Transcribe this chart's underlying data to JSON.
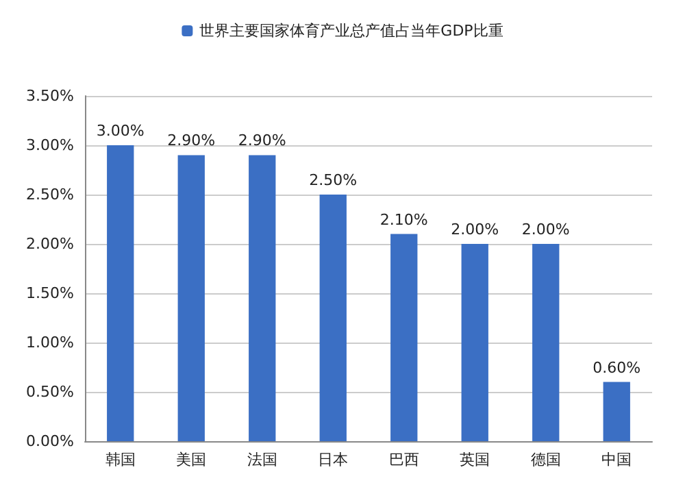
{
  "chart_data": {
    "type": "bar",
    "categories": [
      "韩国",
      "美国",
      "法国",
      "日本",
      "巴西",
      "英国",
      "德国",
      "中国"
    ],
    "series": [
      {
        "name": "世界主要国家体育产业总产值占当年GDP比重",
        "color": "#3b6fc4",
        "values": [
          3.0,
          2.9,
          2.9,
          2.5,
          2.1,
          2.0,
          2.0,
          0.6
        ],
        "value_labels": [
          "3.00%",
          "2.90%",
          "2.90%",
          "2.50%",
          "2.10%",
          "2.00%",
          "2.00%",
          "0.60%"
        ]
      }
    ],
    "ylim": [
      0,
      3.5
    ],
    "yticks": [
      {
        "value": 0,
        "label": "0.00%"
      },
      {
        "value": 0.5,
        "label": "0.50%"
      },
      {
        "value": 1,
        "label": "1.00%"
      },
      {
        "value": 1.5,
        "label": "1.50%"
      },
      {
        "value": 2,
        "label": "2.00%"
      },
      {
        "value": 2.5,
        "label": "2.50%"
      },
      {
        "value": 3,
        "label": "3.00%"
      },
      {
        "value": 3.5,
        "label": "3.50%"
      }
    ],
    "grid": "y",
    "legend": "top"
  }
}
